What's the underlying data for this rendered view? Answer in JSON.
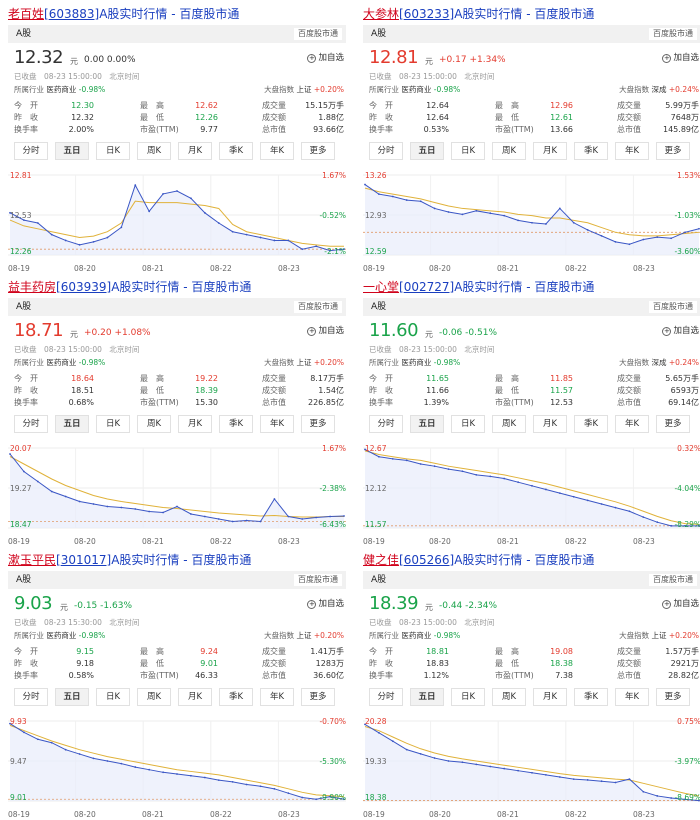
{
  "labels": {
    "suffix": "]A股实时行情 - 百度股市通",
    "market_tab": "A股",
    "brand": "百度股市通",
    "add_watch": "加自选",
    "unit": "元",
    "industry_label": "所属行业",
    "industry_value": "医药商业",
    "industry_change": "-0.98%",
    "index_label": "大盘指数",
    "open": "今　开",
    "prev_close": "昨　收",
    "turnover": "换手率",
    "high": "最　高",
    "low": "最　低",
    "pe": "市盈(TTM)",
    "volume": "成交量",
    "amount": "成交额",
    "market_cap": "总市值",
    "tabs": [
      "分时",
      "五日",
      "日K",
      "周K",
      "月K",
      "季K",
      "年K",
      "更多"
    ],
    "x_dates": [
      "08-19",
      "08-20",
      "08-21",
      "08-22",
      "08-23"
    ]
  },
  "colors": {
    "up": "#e33b2e",
    "down": "#1aa34a",
    "line": "#3a56c5",
    "avg": "#e0b23a"
  },
  "stocks": [
    {
      "name": "老百姓",
      "code": "603883",
      "price": "12.32",
      "change": "0.00",
      "percent": "0.00%",
      "direction": "flat",
      "status": "已收盘　08-23 15:00:00　北京时间",
      "index_name": "上证",
      "index_change": "+0.20%",
      "open": "12.30",
      "high": "12.62",
      "volume": "15.15万手",
      "prev_close": "12.32",
      "low": "12.26",
      "amount": "1.88亿",
      "turnover": "2.00%",
      "pe": "9.77",
      "market_cap": "93.66亿",
      "open_dir": "down",
      "high_dir": "up",
      "low_dir": "down",
      "chart_data": {
        "type": "line",
        "x_labels": [
          "08-19",
          "08-20",
          "08-21",
          "08-22",
          "08-23"
        ],
        "y_left": [
          "12.81",
          "12.53",
          "12.26"
        ],
        "y_right": [
          "1.67%",
          "-0.52%",
          "-2.1%"
        ],
        "y_range": [
          12.26,
          12.81
        ],
        "ref": 12.3,
        "series": [
          {
            "values": [
              12.55,
              12.5,
              12.48,
              12.4,
              12.36,
              12.33,
              12.35,
              12.38,
              12.45,
              12.74,
              12.56,
              12.68,
              12.7,
              12.65,
              12.55,
              12.48,
              12.42,
              12.4,
              12.38,
              12.36,
              12.36,
              12.3,
              12.32,
              12.29,
              12.3
            ]
          }
        ],
        "avg": [
          12.5,
          12.46,
          12.44,
          12.42,
          12.4,
          12.38,
          12.39,
          12.42,
          12.48,
          12.63,
          12.62,
          12.62,
          12.62,
          12.61,
          12.6,
          12.58,
          12.47,
          12.42,
          12.4,
          12.38,
          12.36,
          12.34,
          12.33,
          12.32,
          12.32
        ]
      }
    },
    {
      "name": "大参林",
      "code": "603233",
      "price": "12.81",
      "change": "+0.17",
      "percent": "+1.34%",
      "direction": "up",
      "status": "已收盘　08-23 15:00:00　北京时间",
      "index_name": "深成",
      "index_change": "+0.24%",
      "open": "12.64",
      "high": "12.96",
      "volume": "5.99万手",
      "prev_close": "12.64",
      "low": "12.61",
      "amount": "7648万",
      "turnover": "0.53%",
      "pe": "13.66",
      "market_cap": "145.89亿",
      "open_dir": "flat",
      "high_dir": "up",
      "low_dir": "down",
      "chart_data": {
        "type": "line",
        "x_labels": [
          "08-19",
          "08-20",
          "08-21",
          "08-22",
          "08-23"
        ],
        "y_left": [
          "13.26",
          "12.93",
          "12.59"
        ],
        "y_right": [
          "1.53%",
          "-1.03%",
          "-3.60%"
        ],
        "y_range": [
          12.59,
          13.26
        ],
        "ref": 12.78,
        "series": [
          {
            "values": [
              13.18,
              13.1,
              13.08,
              13.05,
              13.04,
              12.98,
              12.95,
              12.93,
              12.96,
              12.94,
              12.92,
              12.88,
              12.86,
              12.85,
              12.98,
              12.86,
              12.8,
              12.75,
              12.7,
              12.68,
              12.72,
              12.74,
              12.73,
              12.78,
              12.81
            ]
          }
        ],
        "avg": [
          13.15,
          13.12,
          13.1,
          13.08,
          13.06,
          13.03,
          13.0,
          12.98,
          12.97,
          12.96,
          12.95,
          12.93,
          12.92,
          12.9,
          12.9,
          12.88,
          12.86,
          12.82,
          12.78,
          12.76,
          12.75,
          12.75,
          12.76,
          12.77,
          12.78
        ]
      }
    },
    {
      "name": "益丰药房",
      "code": "603939",
      "price": "18.71",
      "change": "+0.20",
      "percent": "+1.08%",
      "direction": "up",
      "status": "已收盘　08-23 15:00:00　北京时间",
      "index_name": "上证",
      "index_change": "+0.20%",
      "open": "18.64",
      "high": "19.22",
      "volume": "8.17万手",
      "prev_close": "18.51",
      "low": "18.39",
      "amount": "1.54亿",
      "turnover": "0.68%",
      "pe": "15.30",
      "market_cap": "226.85亿",
      "open_dir": "up",
      "high_dir": "up",
      "low_dir": "down",
      "chart_data": {
        "type": "line",
        "x_labels": [
          "08-19",
          "08-20",
          "08-21",
          "08-22",
          "08-23"
        ],
        "y_left": [
          "20.07",
          "19.27",
          "18.47"
        ],
        "y_right": [
          "1.67%",
          "-2.38%",
          "-6.43%"
        ],
        "y_range": [
          18.47,
          20.07
        ],
        "ref": 18.6,
        "series": [
          {
            "values": [
              19.95,
              19.6,
              19.4,
              19.2,
              19.1,
              19.0,
              18.95,
              18.9,
              18.88,
              18.85,
              18.8,
              18.78,
              18.9,
              18.75,
              18.7,
              18.65,
              18.6,
              18.62,
              18.6,
              19.05,
              18.7,
              18.65,
              18.68,
              18.7,
              18.71
            ]
          }
        ],
        "avg": [
          19.9,
          19.75,
          19.6,
          19.45,
          19.32,
          19.22,
          19.12,
          19.05,
          19.0,
          18.96,
          18.92,
          18.88,
          18.86,
          18.83,
          18.8,
          18.77,
          18.75,
          18.73,
          18.71,
          18.72,
          18.7,
          18.69,
          18.69,
          18.7,
          18.7
        ]
      }
    },
    {
      "name": "一心堂",
      "code": "002727",
      "price": "11.60",
      "change": "-0.06",
      "percent": "-0.51%",
      "direction": "down",
      "status": "已收盘　08-23 15:00:00　北京时间",
      "index_name": "深成",
      "index_change": "+0.24%",
      "open": "11.65",
      "high": "11.85",
      "volume": "5.65万手",
      "prev_close": "11.66",
      "low": "11.57",
      "amount": "6593万",
      "turnover": "1.39%",
      "pe": "12.53",
      "market_cap": "69.14亿",
      "open_dir": "down",
      "high_dir": "up",
      "low_dir": "down",
      "chart_data": {
        "type": "line",
        "x_labels": [
          "08-19",
          "08-20",
          "08-21",
          "08-22",
          "08-23"
        ],
        "y_left": [
          "12.67",
          "12.12",
          "11.57"
        ],
        "y_right": [
          "0.32%",
          "-4.04%",
          "-8.29%"
        ],
        "y_range": [
          11.57,
          12.67
        ],
        "ref": 11.6,
        "series": [
          {
            "values": [
              12.65,
              12.55,
              12.52,
              12.5,
              12.45,
              12.42,
              12.38,
              12.35,
              12.3,
              12.28,
              12.25,
              12.2,
              12.15,
              12.1,
              12.05,
              12.0,
              11.95,
              11.9,
              11.85,
              11.8,
              11.72,
              11.65,
              11.6,
              11.6,
              11.6
            ]
          }
        ],
        "avg": [
          12.63,
          12.58,
          12.55,
          12.52,
          12.5,
          12.46,
          12.42,
          12.39,
          12.36,
          12.33,
          12.3,
          12.26,
          12.22,
          12.18,
          12.13,
          12.08,
          12.03,
          11.98,
          11.93,
          11.87,
          11.8,
          11.73,
          11.67,
          11.63,
          11.62
        ]
      }
    },
    {
      "name": "漱玉平民",
      "code": "301017",
      "price": "9.03",
      "change": "-0.15",
      "percent": "-1.63%",
      "direction": "down",
      "status": "已收盘　08-23 15:30:00　北京时间",
      "index_name": "上证",
      "index_change": "+0.20%",
      "open": "9.15",
      "high": "9.24",
      "volume": "1.41万手",
      "prev_close": "9.18",
      "low": "9.01",
      "amount": "1283万",
      "turnover": "0.58%",
      "pe": "46.33",
      "market_cap": "36.60亿",
      "open_dir": "down",
      "high_dir": "up",
      "low_dir": "down",
      "chart_data": {
        "type": "line",
        "x_labels": [
          "08-19",
          "08-20",
          "08-21",
          "08-22",
          "08-23"
        ],
        "y_left": [
          "9.93",
          "9.47",
          "9.01"
        ],
        "y_right": [
          "-0.70%",
          "-5.30%",
          "-9.90%"
        ],
        "y_range": [
          9.01,
          9.93
        ],
        "ref": 9.03,
        "series": [
          {
            "values": [
              9.9,
              9.8,
              9.72,
              9.68,
              9.6,
              9.55,
              9.5,
              9.47,
              9.44,
              9.4,
              9.37,
              9.34,
              9.32,
              9.3,
              9.28,
              9.25,
              9.23,
              9.2,
              9.18,
              9.15,
              9.1,
              9.05,
              9.03,
              9.06,
              9.03
            ]
          }
        ],
        "avg": [
          9.88,
          9.82,
          9.76,
          9.7,
          9.65,
          9.6,
          9.56,
          9.52,
          9.49,
          9.46,
          9.43,
          9.4,
          9.37,
          9.35,
          9.33,
          9.31,
          9.28,
          9.25,
          9.22,
          9.19,
          9.15,
          9.11,
          9.08,
          9.07,
          9.06
        ]
      }
    },
    {
      "name": "健之佳",
      "code": "605266",
      "price": "18.39",
      "change": "-0.44",
      "percent": "-2.34%",
      "direction": "down",
      "status": "已收盘　08-23 15:00:00　北京时间",
      "index_name": "上证",
      "index_change": "+0.20%",
      "open": "18.81",
      "high": "19.08",
      "volume": "1.57万手",
      "prev_close": "18.83",
      "low": "18.38",
      "amount": "2921万",
      "turnover": "1.12%",
      "pe": "7.38",
      "market_cap": "28.82亿",
      "open_dir": "down",
      "high_dir": "up",
      "low_dir": "down",
      "chart_data": {
        "type": "line",
        "x_labels": [
          "08-19",
          "08-20",
          "08-21",
          "08-22",
          "08-23"
        ],
        "y_left": [
          "20.28",
          "19.33",
          "18.38"
        ],
        "y_right": [
          "0.75%",
          "-3.97%",
          "-8.69%"
        ],
        "y_range": [
          18.38,
          20.28
        ],
        "ref": 18.39,
        "series": [
          {
            "values": [
              20.2,
              20.0,
              19.8,
              19.6,
              19.5,
              19.4,
              19.33,
              19.3,
              19.25,
              19.2,
              19.15,
              19.1,
              19.05,
              19.0,
              18.95,
              18.9,
              18.88,
              18.85,
              18.82,
              18.9,
              18.6,
              18.5,
              18.45,
              18.42,
              18.39
            ]
          }
        ],
        "avg": [
          20.15,
          20.05,
          19.9,
          19.75,
          19.62,
          19.52,
          19.44,
          19.38,
          19.33,
          19.28,
          19.23,
          19.18,
          19.13,
          19.08,
          19.03,
          18.99,
          18.96,
          18.93,
          18.9,
          18.88,
          18.8,
          18.72,
          18.64,
          18.56,
          18.5
        ]
      }
    }
  ]
}
